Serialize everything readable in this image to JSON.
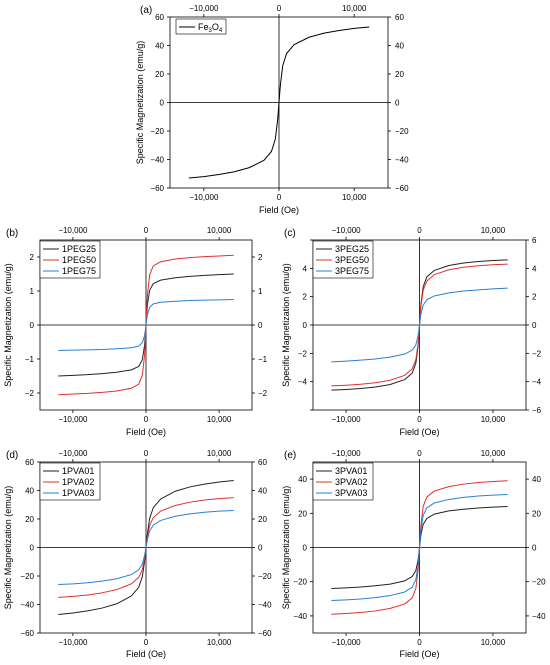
{
  "chart_data": [
    {
      "panel_label": "(a)",
      "type": "line",
      "xlabel": "Field (Oe)",
      "ylabel": "Specific Magnetization (emu/g)",
      "xlim": [
        -14500,
        14500
      ],
      "ylim": [
        -60,
        60
      ],
      "x_ticks": [
        -10000,
        0,
        10000
      ],
      "x_tick_labels": [
        "−10,000",
        "0",
        "10,000"
      ],
      "y_ticks": [
        -60,
        -40,
        -20,
        0,
        20,
        40,
        60
      ],
      "y_tick_labels": [
        "−60",
        "−40",
        "−20",
        "0",
        "20",
        "40",
        "60"
      ],
      "right_tick_labels": [
        "−60",
        "−40",
        "−20",
        "0",
        "20",
        "40",
        "60"
      ],
      "x": [
        -12000,
        -10000,
        -8000,
        -6000,
        -4000,
        -2000,
        -1000,
        -500,
        -200,
        -100,
        0,
        100,
        200,
        500,
        1000,
        2000,
        4000,
        6000,
        8000,
        10000,
        12000
      ],
      "series": [
        {
          "name": "Fe3O4",
          "name_main": "Fe",
          "name_sub1": "3",
          "name_mid": "O",
          "name_sub2": "4",
          "color": "#000000",
          "values": [
            -53,
            -52,
            -50.5,
            -48.7,
            -45.8,
            -40.6,
            -34.3,
            -25.9,
            -13.1,
            -6.9,
            0,
            6.9,
            13.1,
            25.9,
            34.3,
            40.6,
            45.8,
            48.7,
            50.5,
            52,
            53
          ]
        }
      ]
    },
    {
      "panel_label": "(b)",
      "type": "line",
      "xlabel": "Field (Oe)",
      "ylabel": "Specific Magnetization (emu/g)",
      "xlim": [
        -14500,
        14500
      ],
      "ylim": [
        -2.5,
        2.5
      ],
      "x_ticks": [
        -10000,
        0,
        10000
      ],
      "x_tick_labels": [
        "−10,000",
        "0",
        "10,000"
      ],
      "y_ticks": [
        -2,
        -1,
        0,
        1,
        2
      ],
      "y_tick_labels": [
        "−2",
        "−1",
        "0",
        "1",
        "2"
      ],
      "right_tick_labels": [
        "−2",
        "−1",
        "0",
        "1",
        "2"
      ],
      "x": [
        -12000,
        -10000,
        -8000,
        -6000,
        -4000,
        -2000,
        -1000,
        -500,
        -200,
        -100,
        0,
        100,
        200,
        500,
        1000,
        2000,
        4000,
        6000,
        8000,
        10000,
        12000
      ],
      "series": [
        {
          "name": "1PEG25",
          "color": "#222222",
          "values": [
            -1.5,
            -1.48,
            -1.46,
            -1.43,
            -1.39,
            -1.32,
            -1.22,
            -1.02,
            -0.6,
            -0.33,
            0,
            0.33,
            0.6,
            1.02,
            1.22,
            1.32,
            1.39,
            1.43,
            1.46,
            1.48,
            1.5
          ]
        },
        {
          "name": "1PEG50",
          "color": "#e03030",
          "values": [
            -2.05,
            -2.03,
            -2.01,
            -1.98,
            -1.94,
            -1.86,
            -1.74,
            -1.48,
            -0.9,
            -0.5,
            0,
            0.5,
            0.9,
            1.48,
            1.74,
            1.86,
            1.94,
            1.98,
            2.01,
            2.03,
            2.05
          ]
        },
        {
          "name": "1PEG75",
          "color": "#2a7fd4",
          "values": [
            -0.75,
            -0.74,
            -0.73,
            -0.72,
            -0.7,
            -0.67,
            -0.62,
            -0.52,
            -0.31,
            -0.17,
            0,
            0.17,
            0.31,
            0.52,
            0.62,
            0.67,
            0.7,
            0.72,
            0.73,
            0.74,
            0.75
          ]
        }
      ]
    },
    {
      "panel_label": "(c)",
      "type": "line",
      "xlabel": "Field (Oe)",
      "ylabel": "Specific Magnetization (emu/g)",
      "xlim": [
        -14500,
        14500
      ],
      "ylim": [
        -6,
        6
      ],
      "x_ticks": [
        -10000,
        0,
        10000
      ],
      "x_tick_labels": [
        "−10,000",
        "0",
        "10,000"
      ],
      "y_ticks": [
        -6,
        -4,
        -2,
        0,
        2,
        4,
        6
      ],
      "y_tick_labels": [
        "",
        "−4",
        "−2",
        "0",
        "2",
        "4",
        ""
      ],
      "right_tick_labels": [
        "−6",
        "−4",
        "−2",
        "0",
        "2",
        "4",
        "6"
      ],
      "x": [
        -12000,
        -10000,
        -8000,
        -6000,
        -4000,
        -2000,
        -1000,
        -500,
        -200,
        -100,
        0,
        100,
        200,
        500,
        1000,
        2000,
        4000,
        6000,
        8000,
        10000,
        12000
      ],
      "series": [
        {
          "name": "3PEG25",
          "color": "#222222",
          "values": [
            -4.6,
            -4.55,
            -4.48,
            -4.38,
            -4.2,
            -3.85,
            -3.4,
            -2.7,
            -1.5,
            -0.8,
            0,
            0.8,
            1.5,
            2.7,
            3.4,
            3.85,
            4.2,
            4.38,
            4.48,
            4.55,
            4.6
          ]
        },
        {
          "name": "3PEG50",
          "color": "#e03030",
          "values": [
            -4.3,
            -4.25,
            -4.18,
            -4.08,
            -3.9,
            -3.55,
            -3.1,
            -2.45,
            -1.35,
            -0.72,
            0,
            0.72,
            1.35,
            2.45,
            3.1,
            3.55,
            3.9,
            4.08,
            4.18,
            4.25,
            4.3
          ]
        },
        {
          "name": "3PEG75",
          "color": "#2a7fd4",
          "values": [
            -2.6,
            -2.55,
            -2.48,
            -2.4,
            -2.27,
            -2.05,
            -1.78,
            -1.4,
            -0.78,
            -0.42,
            0,
            0.42,
            0.78,
            1.4,
            1.78,
            2.05,
            2.27,
            2.4,
            2.48,
            2.55,
            2.6
          ]
        }
      ]
    },
    {
      "panel_label": "(d)",
      "type": "line",
      "xlabel": "Field (Oe)",
      "ylabel": "Specific Magnetization (emu/g)",
      "xlim": [
        -14500,
        14500
      ],
      "ylim": [
        -60,
        60
      ],
      "x_ticks": [
        -10000,
        0,
        10000
      ],
      "x_tick_labels": [
        "−10,000",
        "0",
        "10,000"
      ],
      "y_ticks": [
        -60,
        -40,
        -20,
        0,
        20,
        40,
        60
      ],
      "y_tick_labels": [
        "−60",
        "−40",
        "−20",
        "0",
        "20",
        "40",
        "60"
      ],
      "right_tick_labels": [
        "−60",
        "−40",
        "−20",
        "0",
        "20",
        "40",
        "60"
      ],
      "x": [
        -12000,
        -10000,
        -8000,
        -6000,
        -4000,
        -2000,
        -1000,
        -500,
        -200,
        -100,
        0,
        100,
        200,
        500,
        1000,
        2000,
        4000,
        6000,
        8000,
        10000,
        12000
      ],
      "series": [
        {
          "name": "1PVA01",
          "color": "#222222",
          "values": [
            -47,
            -46,
            -44.5,
            -42.5,
            -39.5,
            -34,
            -28,
            -20.5,
            -10,
            -5.2,
            0,
            5.2,
            10,
            20.5,
            28,
            34,
            39.5,
            42.5,
            44.5,
            46,
            47
          ]
        },
        {
          "name": "1PVA02",
          "color": "#e03030",
          "values": [
            -35,
            -34.3,
            -33.3,
            -31.8,
            -29.5,
            -25.5,
            -21,
            -15.5,
            -7.6,
            -4,
            0,
            4,
            7.6,
            15.5,
            21,
            25.5,
            29.5,
            31.8,
            33.3,
            34.3,
            35
          ]
        },
        {
          "name": "1PVA03",
          "color": "#2a7fd4",
          "values": [
            -26,
            -25.5,
            -24.7,
            -23.6,
            -21.9,
            -19,
            -15.7,
            -11.6,
            -5.7,
            -3,
            0,
            3,
            5.7,
            11.6,
            15.7,
            19,
            21.9,
            23.6,
            24.7,
            25.5,
            26
          ]
        }
      ]
    },
    {
      "panel_label": "(e)",
      "type": "line",
      "xlabel": "Field (Oe)",
      "ylabel": "Specific Magnetization (emu/g)",
      "xlim": [
        -14500,
        14500
      ],
      "ylim": [
        -50,
        50
      ],
      "x_ticks": [
        -10000,
        0,
        10000
      ],
      "x_tick_labels": [
        "−10,000",
        "0",
        "10,000"
      ],
      "y_ticks": [
        -40,
        -20,
        0,
        20,
        40
      ],
      "y_tick_labels": [
        "−40",
        "−20",
        "0",
        "20",
        "40"
      ],
      "right_tick_labels": [
        "−40",
        "−20",
        "0",
        "20",
        "40"
      ],
      "x": [
        -12000,
        -10000,
        -8000,
        -6000,
        -4000,
        -2000,
        -1000,
        -500,
        -200,
        -100,
        0,
        100,
        200,
        500,
        1000,
        2000,
        4000,
        6000,
        8000,
        10000,
        12000
      ],
      "series": [
        {
          "name": "3PVA01",
          "color": "#222222",
          "values": [
            -24,
            -23.6,
            -23.1,
            -22.4,
            -21.4,
            -19.5,
            -17,
            -13.5,
            -7.5,
            -4,
            0,
            4,
            7.5,
            13.5,
            17,
            19.5,
            21.4,
            22.4,
            23.1,
            23.6,
            24
          ]
        },
        {
          "name": "3PVA02",
          "color": "#e03030",
          "values": [
            -39,
            -38.6,
            -38,
            -37.1,
            -35.6,
            -33,
            -29.5,
            -24,
            -13.5,
            -7.2,
            0,
            7.2,
            13.5,
            24,
            29.5,
            33,
            35.6,
            37.1,
            38,
            38.6,
            39
          ]
        },
        {
          "name": "3PVA03",
          "color": "#2a7fd4",
          "values": [
            -31,
            -30.6,
            -30.1,
            -29.3,
            -28.1,
            -26,
            -23.2,
            -18.8,
            -10.5,
            -5.6,
            0,
            5.6,
            10.5,
            18.8,
            23.2,
            26,
            28.1,
            29.3,
            30.1,
            30.6,
            31
          ]
        }
      ]
    }
  ]
}
